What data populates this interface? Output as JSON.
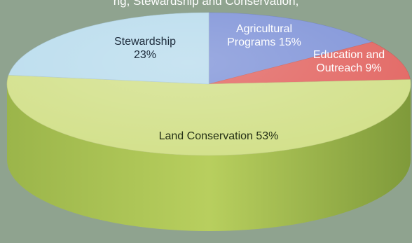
{
  "header": {
    "cropped_text": "ng, Stewardship and Conservation,"
  },
  "chart_data": {
    "type": "pie",
    "style": "3d",
    "title": "",
    "start": "between Stewardship and Agricultural Programs (top), clockwise",
    "slices": [
      {
        "label_lines": [
          "Agricultural",
          "Programs 15%"
        ],
        "name": "Agricultural Programs",
        "value": 15,
        "color": "#7f93d8"
      },
      {
        "label_lines": [
          "Education and",
          "Outreach 9%"
        ],
        "name": "Education and Outreach",
        "value": 9,
        "color": "#e26460"
      },
      {
        "label_lines": [
          "Land Conservation 53%"
        ],
        "name": "Land Conservation",
        "value": 53,
        "color": "#d2e089"
      },
      {
        "label_lines": [
          "Stewardship",
          "23%"
        ],
        "name": "Stewardship",
        "value": 23,
        "color": "#b9dced"
      }
    ]
  }
}
